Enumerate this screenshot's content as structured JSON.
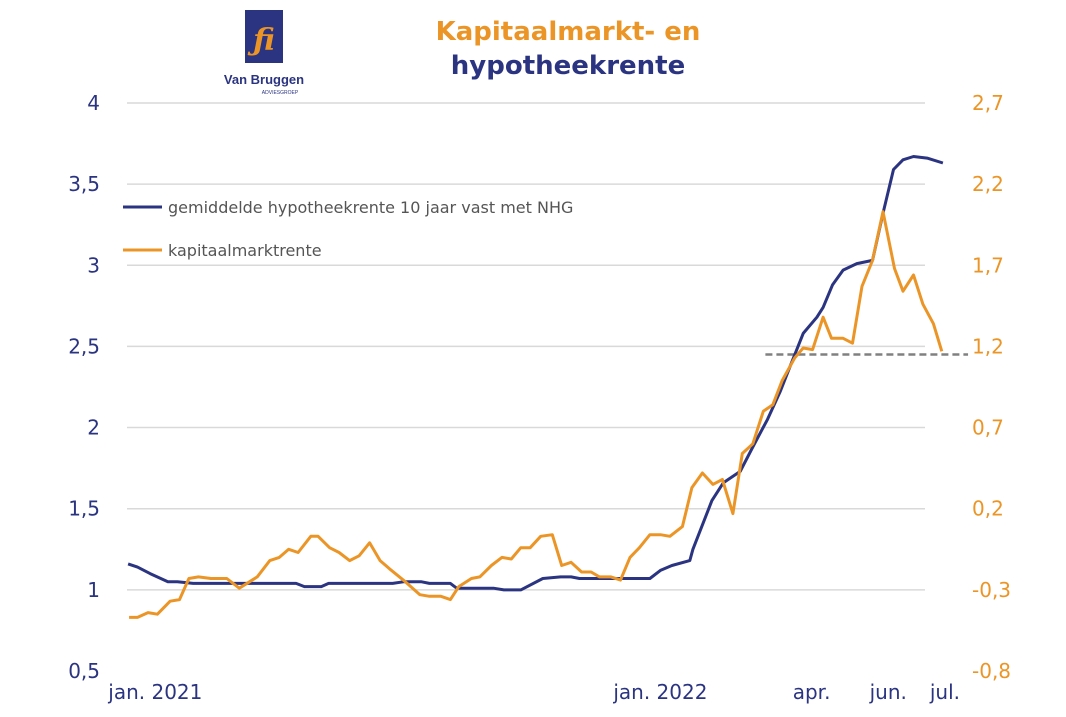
{
  "logo": {
    "name": "Van Bruggen",
    "sub": "ADVIESGROEP",
    "glyph": "fj"
  },
  "chart_data": {
    "type": "line",
    "title": [
      "Kapitaalmarkt- en",
      "hypotheekrente"
    ],
    "colors": {
      "hypotheekrente": "#2b3481",
      "kapitaalmarktrente": "#ec9527",
      "reference": "#808080",
      "grid": "#d9d9d9"
    },
    "x_unit": "weeks since jan. 2021",
    "x_ticks": [
      {
        "label": "jan. 2021",
        "x": 2.7
      },
      {
        "label": "jan. 2022",
        "x": 50.8
      },
      {
        "label": "apr.",
        "x": 65.2
      },
      {
        "label": "jun.",
        "x": 72.5
      },
      {
        "label": "jul.",
        "x": 77.9
      }
    ],
    "y_left": {
      "ticks": [
        "0,5",
        "1",
        "1,5",
        "2",
        "2,5",
        "3",
        "3,5",
        "4"
      ],
      "values": [
        0.5,
        1,
        1.5,
        2,
        2.5,
        3,
        3.5,
        4
      ],
      "range": [
        0.5,
        4
      ]
    },
    "y_right": {
      "ticks": [
        "-0,8",
        "-0,3",
        "0,2",
        "0,7",
        "1,2",
        "1,7",
        "2,2",
        "2,7"
      ],
      "values": [
        -0.8,
        -0.3,
        0.2,
        0.7,
        1.2,
        1.7,
        2.2,
        2.7
      ],
      "range": [
        -0.8,
        2.7
      ]
    },
    "grid": true,
    "legend_position": "top-left",
    "series": [
      {
        "name": "gemiddelde hypotheekrente 10 jaar vast met NHG",
        "axis": "left",
        "x": [
          0.1,
          1.0,
          2.2,
          3.9,
          4.8,
          6.3,
          16.1,
          16.9,
          18.5,
          19.2,
          25.3,
          26.4,
          28.0,
          28.8,
          30.8,
          31.4,
          34.9,
          35.9,
          37.5,
          39.6,
          41.3,
          42.3,
          43.1,
          49.8,
          50.8,
          51.9,
          53.6,
          53.9,
          55.7,
          56.8,
          58.4,
          59.6,
          61.0,
          62.2,
          63.3,
          64.4,
          65.7,
          66.3,
          67.2,
          68.2,
          69.5,
          71.0,
          72.0,
          73.0,
          73.9,
          74.9,
          76.2,
          77.7
        ],
        "values": [
          1.16,
          1.14,
          1.1,
          1.05,
          1.05,
          1.04,
          1.04,
          1.02,
          1.02,
          1.04,
          1.04,
          1.05,
          1.05,
          1.04,
          1.04,
          1.01,
          1.01,
          1.0,
          1.0,
          1.07,
          1.08,
          1.08,
          1.07,
          1.07,
          1.12,
          1.15,
          1.18,
          1.25,
          1.55,
          1.66,
          1.73,
          1.88,
          2.05,
          2.22,
          2.4,
          2.58,
          2.68,
          2.74,
          2.88,
          2.97,
          3.01,
          3.03,
          3.32,
          3.59,
          3.65,
          3.67,
          3.66,
          3.63
        ]
      },
      {
        "name": "kapitaalmarktrente",
        "axis": "right",
        "x": [
          0.2,
          1.0,
          2.0,
          2.9,
          4.1,
          5.0,
          5.9,
          6.8,
          8.0,
          9.5,
          10.7,
          12.4,
          13.6,
          14.5,
          15.4,
          16.3,
          17.5,
          18.2,
          19.3,
          20.2,
          21.2,
          22.1,
          23.1,
          24.1,
          25.0,
          26.5,
          27.9,
          28.8,
          29.9,
          30.8,
          31.6,
          32.8,
          33.6,
          34.7,
          35.7,
          36.6,
          37.5,
          38.4,
          39.4,
          40.5,
          41.4,
          42.3,
          43.3,
          44.2,
          45.0,
          46.1,
          47.0,
          47.9,
          48.8,
          49.8,
          50.8,
          51.7,
          52.9,
          53.8,
          54.8,
          55.8,
          56.7,
          57.7,
          58.6,
          59.6,
          60.6,
          61.5,
          62.4,
          63.6,
          64.4,
          65.3,
          66.3,
          67.1,
          68.2,
          69.1,
          70.0,
          71.0,
          72.0,
          73.1,
          73.9,
          74.9,
          75.8,
          76.8,
          77.6
        ],
        "values": [
          -0.47,
          -0.47,
          -0.44,
          -0.45,
          -0.37,
          -0.36,
          -0.23,
          -0.22,
          -0.23,
          -0.23,
          -0.29,
          -0.22,
          -0.12,
          -0.1,
          -0.05,
          -0.07,
          0.03,
          0.03,
          -0.04,
          -0.07,
          -0.12,
          -0.09,
          -0.01,
          -0.12,
          -0.17,
          -0.25,
          -0.33,
          -0.34,
          -0.34,
          -0.36,
          -0.28,
          -0.23,
          -0.22,
          -0.15,
          -0.1,
          -0.11,
          -0.04,
          -0.04,
          0.03,
          0.04,
          -0.15,
          -0.13,
          -0.19,
          -0.19,
          -0.22,
          -0.22,
          -0.24,
          -0.1,
          -0.04,
          0.04,
          0.04,
          0.03,
          0.09,
          0.33,
          0.42,
          0.35,
          0.38,
          0.17,
          0.54,
          0.6,
          0.8,
          0.84,
          0.99,
          1.13,
          1.19,
          1.18,
          1.38,
          1.25,
          1.25,
          1.22,
          1.57,
          1.73,
          2.03,
          1.68,
          1.54,
          1.64,
          1.46,
          1.34,
          1.17
        ]
      }
    ],
    "reference_line": {
      "axis": "right",
      "value": 1.15,
      "x_from": 60.8,
      "x_to": 80.1,
      "style": "dashed"
    }
  }
}
